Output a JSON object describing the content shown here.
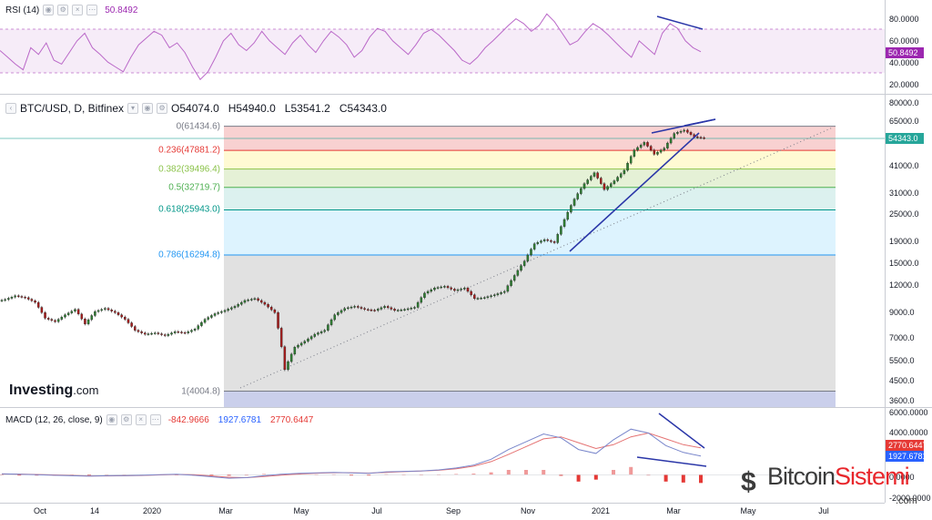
{
  "rsi": {
    "label": "RSI (14)",
    "value": "50.8492",
    "ticks": [
      "80.0000",
      "60.0000",
      "40.0000",
      "20.0000"
    ],
    "band": [
      30,
      70
    ],
    "tag_color": "#9c27b0"
  },
  "main": {
    "symbol": "BTC/USD, D, Bitfinex",
    "open": "O54074.0",
    "high": "H54940.0",
    "low": "L53541.2",
    "close": "C54343.0",
    "last_price_tag": "54343.0",
    "last_price_color": "#26a69a",
    "brand": "Investing",
    "brand_domain": ".com",
    "ticks": [
      "80000.0",
      "65000.0",
      "54343.0",
      "41000.0",
      "31000.0",
      "25000.0",
      "19000.0",
      "15000.0",
      "12000.0",
      "9000.0",
      "7000.0",
      "5500.0",
      "4500.0",
      "3600.0"
    ]
  },
  "fib": [
    {
      "label": "0(61434.6)",
      "value": 61434.6,
      "color": "#787b86"
    },
    {
      "label": "0.236(47881.2)",
      "value": 47881.2,
      "color": "#e53935"
    },
    {
      "label": "0.382(39496.4)",
      "value": 39496.4,
      "color": "#8bc34a"
    },
    {
      "label": "0.5(32719.7)",
      "value": 32719.7,
      "color": "#4caf50"
    },
    {
      "label": "0.618(25943.0)",
      "value": 25943.0,
      "color": "#009688"
    },
    {
      "label": "0.786(16294.8)",
      "value": 16294.8,
      "color": "#2196f3"
    },
    {
      "label": "1(4004.8)",
      "value": 4004.8,
      "color": "#787b86"
    }
  ],
  "macd": {
    "label": "MACD (12, 26, close, 9)",
    "hist": "-842.9666",
    "macd": "1927.6781",
    "signal": "2770.6447",
    "hist_color": "#e53935",
    "macd_color": "#2962ff",
    "signal_color": "#e53935",
    "ticks": [
      "6000.0000",
      "4000.0000",
      "0.0000",
      "-2000.0000"
    ],
    "tag_signal": "2770.6447",
    "tag_macd": "1927.6781"
  },
  "x_axis": [
    "Oct",
    "14",
    "2020",
    "Mar",
    "May",
    "Jul",
    "Sep",
    "Nov",
    "2021",
    "Mar",
    "May",
    "Jul"
  ],
  "watermark": {
    "name_a": "Bitcoin",
    "name_b": "Sistemi",
    "domain": ".com"
  },
  "chart_data": [
    {
      "type": "line",
      "title": "RSI (14)",
      "ylim": [
        10,
        95
      ],
      "current": 50.8492,
      "series": [
        {
          "name": "RSI (14)",
          "values": [
            52,
            45,
            38,
            32,
            55,
            48,
            60,
            42,
            38,
            50,
            62,
            70,
            55,
            48,
            40,
            35,
            30,
            45,
            58,
            65,
            72,
            68,
            55,
            60,
            50,
            35,
            22,
            30,
            45,
            62,
            70,
            58,
            52,
            60,
            72,
            62,
            55,
            48,
            60,
            68,
            58,
            50,
            62,
            72,
            66,
            58,
            45,
            52,
            66,
            75,
            72,
            62,
            55,
            48,
            58,
            70,
            74,
            68,
            60,
            52,
            42,
            38,
            45,
            55,
            62,
            70,
            78,
            85,
            80,
            72,
            78,
            90,
            82,
            70,
            58,
            62,
            72,
            80,
            75,
            68,
            60,
            52,
            45,
            62,
            55,
            48,
            70,
            80,
            75,
            62,
            55,
            50.8
          ]
        }
      ]
    },
    {
      "type": "line",
      "title": "BTC/USD, D, Bitfinex",
      "scale": "log",
      "ylim": [
        3400,
        85000
      ],
      "open": 54074.0,
      "high": 54940.0,
      "low": 53541.2,
      "close": 54343.0,
      "series": [
        {
          "name": "BTC/USD",
          "values": [
            10300,
            10700,
            10500,
            10000,
            8500,
            8200,
            8800,
            9300,
            8000,
            9100,
            9400,
            9000,
            8400,
            7500,
            7200,
            7300,
            7100,
            7400,
            7300,
            7600,
            8400,
            8900,
            9200,
            9600,
            10200,
            10400,
            9800,
            9000,
            5000,
            6300,
            6700,
            7200,
            7500,
            8800,
            9400,
            9600,
            9300,
            9200,
            9600,
            9200,
            9300,
            9500,
            11000,
            11600,
            11800,
            11300,
            11600,
            10400,
            10500,
            10800,
            11200,
            13200,
            15300,
            18300,
            19100,
            18500,
            23500,
            29000,
            34000,
            38000,
            32000,
            35000,
            39000,
            48000,
            52000,
            46000,
            49000,
            57000,
            59000,
            55000,
            54343
          ]
        }
      ]
    },
    {
      "type": "line",
      "title": "MACD (12, 26, close, 9)",
      "ylim": [
        -2500,
        6500
      ],
      "series": [
        {
          "name": "MACD",
          "values": [
            100,
            50,
            0,
            -50,
            -100,
            -150,
            -100,
            -80,
            -50,
            0,
            50,
            -50,
            -200,
            -350,
            -300,
            -100,
            50,
            150,
            200,
            250,
            200,
            150,
            300,
            350,
            400,
            500,
            700,
            1000,
            1600,
            2600,
            3400,
            4200,
            3800,
            2600,
            2200,
            3600,
            4700,
            4300,
            3000,
            2300,
            1927.7
          ]
        },
        {
          "name": "Signal",
          "values": [
            80,
            70,
            30,
            -20,
            -70,
            -120,
            -120,
            -100,
            -70,
            -20,
            30,
            0,
            -120,
            -260,
            -300,
            -180,
            -40,
            80,
            160,
            210,
            210,
            170,
            250,
            320,
            380,
            460,
            620,
            880,
            1350,
            2100,
            2900,
            3700,
            3900,
            3300,
            2700,
            3100,
            3900,
            4300,
            3700,
            3100,
            2770.6
          ]
        },
        {
          "name": "Histogram",
          "values": [
            20,
            -20,
            -30,
            -30,
            -30,
            -30,
            20,
            20,
            20,
            20,
            20,
            -50,
            -80,
            -90,
            0,
            80,
            90,
            70,
            40,
            40,
            -10,
            -20,
            50,
            30,
            20,
            40,
            80,
            120,
            250,
            500,
            500,
            500,
            -100,
            -700,
            -500,
            500,
            800,
            0,
            -700,
            -800,
            -843.0
          ]
        }
      ]
    }
  ]
}
